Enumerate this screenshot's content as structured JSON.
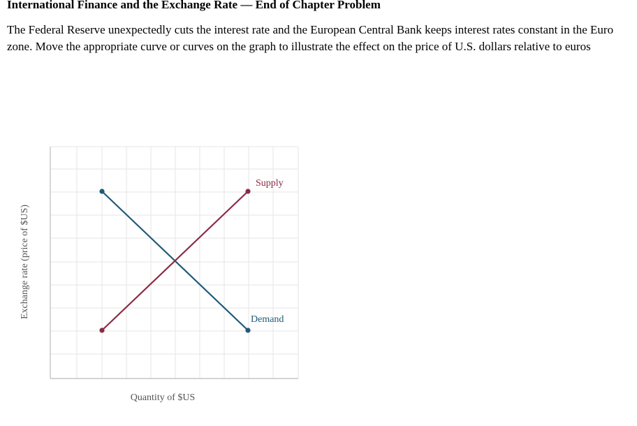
{
  "header": {
    "title": "International Finance and the Exchange Rate — End of Chapter Problem"
  },
  "problem": {
    "text": "The Federal Reserve unexpectedly cuts the interest rate and the European Central Bank keeps interest rates constant in the Euro zone. Move the appropriate curve or curves on the graph to illustrate the effect on the price of U.S. dollars relative to euros"
  },
  "graph": {
    "x_axis_label": "Quantity of $US",
    "y_axis_label": "Exchange rate (price of $US)",
    "supply": {
      "label": "Supply",
      "color": "#8b2a45"
    },
    "demand": {
      "label": "Demand",
      "color": "#1e5a78"
    },
    "grid_color": "#e6e6e6",
    "axis_color": "#bbbbbb"
  }
}
